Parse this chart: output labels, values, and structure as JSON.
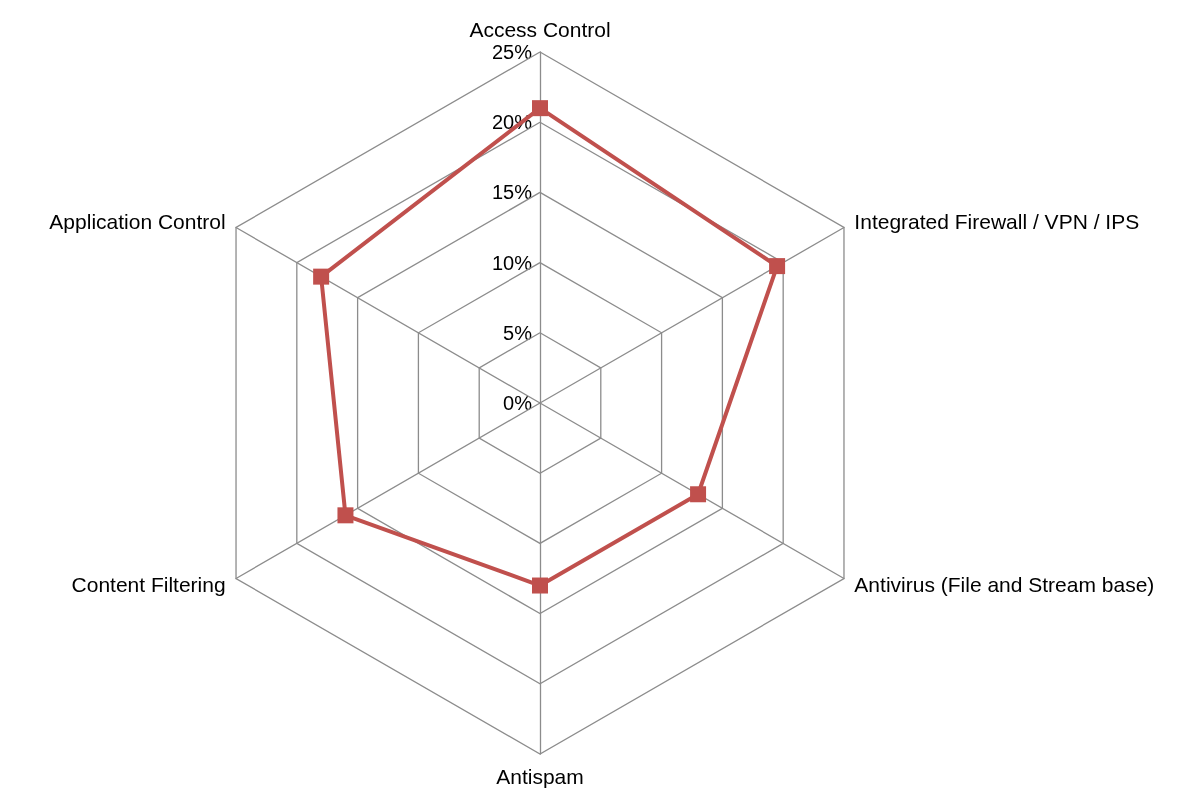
{
  "chart_data": {
    "type": "radar",
    "categories": [
      "Access Control",
      "Integrated Firewall / VPN / IPS",
      "Antivirus (File and Stream base)",
      "Antispam",
      "Content Filtering",
      "Application Control"
    ],
    "series": [
      {
        "color": "#c0504d",
        "values": [
          21,
          19.5,
          13,
          13,
          16,
          18
        ]
      }
    ],
    "ylim": [
      0,
      25
    ],
    "yticks": [
      {
        "value": 0,
        "label": "0%"
      },
      {
        "value": 5,
        "label": "5%"
      },
      {
        "value": 10,
        "label": "10%"
      },
      {
        "value": 15,
        "label": "15%"
      },
      {
        "value": 20,
        "label": "20%"
      },
      {
        "value": 25,
        "label": "25%"
      }
    ],
    "marker": "square",
    "line_style": "solid",
    "grid": true
  }
}
